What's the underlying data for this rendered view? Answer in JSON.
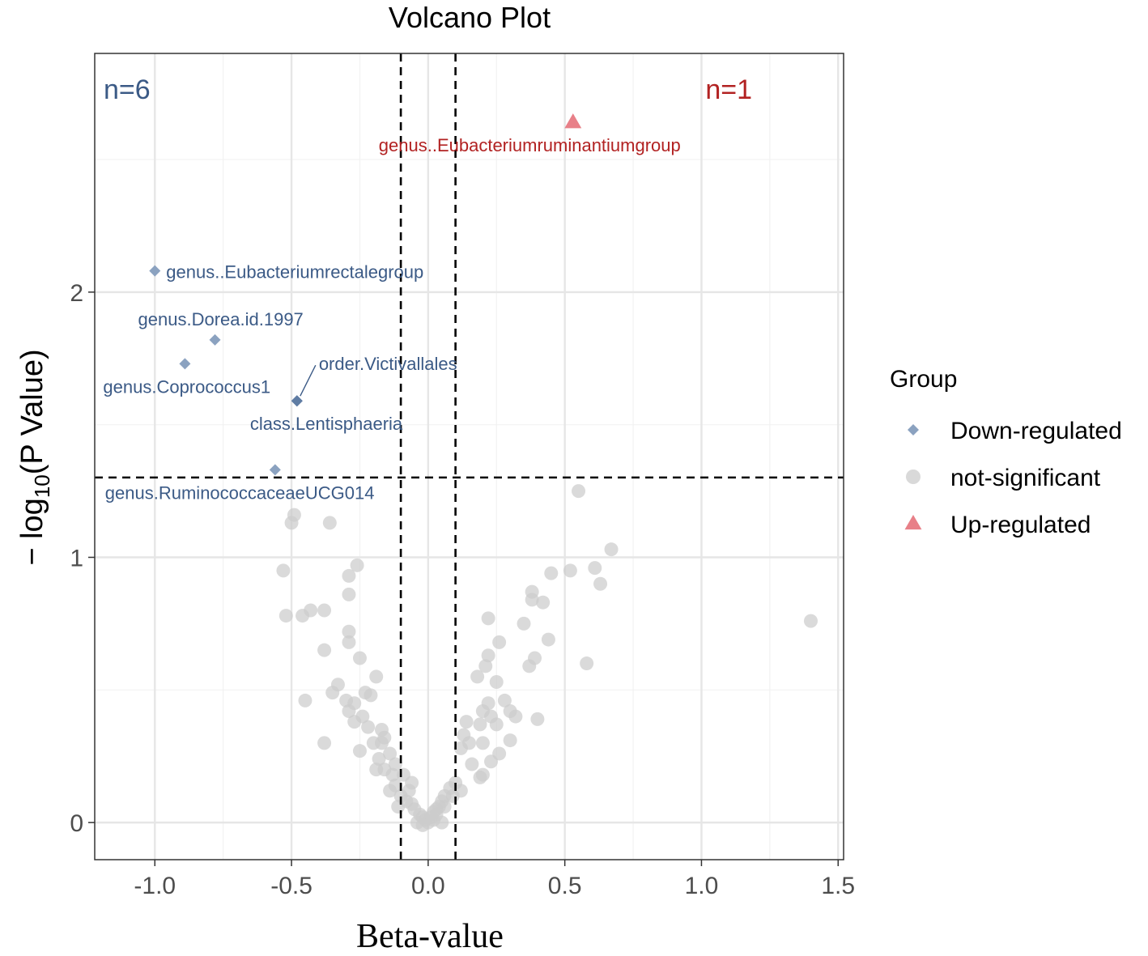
{
  "chart_data": {
    "type": "scatter",
    "title": "Volcano Plot",
    "xlabel": "Beta-value",
    "ylabel_prefix": "− log",
    "ylabel_sub": "10",
    "ylabel_suffix": "(P Value)",
    "xlim": [
      -1.22,
      1.52
    ],
    "ylim": [
      -0.14,
      2.9
    ],
    "x_ticks": [
      -1.0,
      -0.5,
      0.0,
      0.5,
      1.0,
      1.5
    ],
    "x_tick_labels": [
      "-1.0",
      "-0.5",
      "0.0",
      "0.5",
      "1.0",
      "1.5"
    ],
    "y_ticks": [
      0,
      1,
      2
    ],
    "y_tick_labels": [
      "0",
      "1",
      "2"
    ],
    "minor_x": [
      -0.75,
      -0.25,
      0.25,
      0.75,
      1.25
    ],
    "minor_y": [
      0.5,
      1.5,
      2.5
    ],
    "thresholds": {
      "x": [
        -0.1,
        0.1
      ],
      "y": 1.301
    },
    "counts": [
      {
        "text": "n=6",
        "color": "#3b5a86"
      },
      {
        "text": "n=1",
        "color": "#b22222"
      }
    ],
    "legend": {
      "title": "Group",
      "items": [
        {
          "label": "Down-regulated",
          "color": "#8ba2c0",
          "shape": "diamond"
        },
        {
          "label": "not-significant",
          "color": "#cccccc",
          "shape": "circle"
        },
        {
          "label": "Up-regulated",
          "color": "#e88088",
          "shape": "triangle"
        }
      ]
    },
    "significant": [
      {
        "label": "genus..Eubacteriumruminantiumgroup",
        "group": "Up-regulated",
        "x": 0.53,
        "y": 2.64
      },
      {
        "label": "genus..Eubacteriumrectalegroup",
        "group": "Down-regulated",
        "x": -1.0,
        "y": 2.08
      },
      {
        "label": "genus.Dorea.id.1997",
        "group": "Down-regulated",
        "x": -0.78,
        "y": 1.82
      },
      {
        "label": "genus.Coprococcus1",
        "group": "Down-regulated",
        "x": -0.89,
        "y": 1.73
      },
      {
        "label": "order.Victivallales",
        "group": "Down-regulated",
        "x": -0.48,
        "y": 1.59
      },
      {
        "label": "class.Lentisphaeria",
        "group": "Down-regulated",
        "x": -0.48,
        "y": 1.59
      },
      {
        "label": "genus.RuminococcaceaeUCG014",
        "group": "Down-regulated",
        "x": -0.56,
        "y": 1.33
      }
    ],
    "not_significant": [
      [
        0.55,
        1.25
      ],
      [
        0.67,
        1.03
      ],
      [
        0.52,
        0.95
      ],
      [
        0.61,
        0.96
      ],
      [
        0.63,
        0.9
      ],
      [
        1.4,
        0.76
      ],
      [
        0.45,
        0.94
      ],
      [
        0.38,
        0.87
      ],
      [
        0.38,
        0.84
      ],
      [
        0.42,
        0.83
      ],
      [
        0.35,
        0.75
      ],
      [
        0.44,
        0.69
      ],
      [
        0.39,
        0.62
      ],
      [
        0.37,
        0.59
      ],
      [
        0.58,
        0.6
      ],
      [
        0.22,
        0.77
      ],
      [
        0.26,
        0.68
      ],
      [
        0.22,
        0.63
      ],
      [
        0.21,
        0.59
      ],
      [
        0.25,
        0.53
      ],
      [
        0.18,
        0.55
      ],
      [
        0.22,
        0.45
      ],
      [
        0.28,
        0.46
      ],
      [
        0.3,
        0.42
      ],
      [
        0.32,
        0.4
      ],
      [
        0.4,
        0.39
      ],
      [
        0.2,
        0.42
      ],
      [
        0.23,
        0.4
      ],
      [
        0.25,
        0.37
      ],
      [
        0.19,
        0.37
      ],
      [
        0.14,
        0.38
      ],
      [
        0.13,
        0.33
      ],
      [
        0.2,
        0.3
      ],
      [
        0.3,
        0.31
      ],
      [
        0.26,
        0.26
      ],
      [
        0.23,
        0.23
      ],
      [
        0.15,
        0.3
      ],
      [
        0.12,
        0.28
      ],
      [
        0.16,
        0.22
      ],
      [
        0.2,
        0.18
      ],
      [
        0.19,
        0.17
      ],
      [
        0.1,
        0.15
      ],
      [
        0.08,
        0.13
      ],
      [
        0.12,
        0.12
      ],
      [
        0.06,
        0.1
      ],
      [
        0.05,
        0.08
      ],
      [
        0.04,
        0.06
      ],
      [
        0.03,
        0.05
      ],
      [
        0.02,
        0.04
      ],
      [
        0.01,
        0.02
      ],
      [
        0.0,
        0.0
      ],
      [
        0.02,
        0.01
      ],
      [
        -0.01,
        0.01
      ],
      [
        0.03,
        0.03
      ],
      [
        0.06,
        0.06
      ],
      [
        0.09,
        0.1
      ],
      [
        -0.02,
        0.02
      ],
      [
        -0.03,
        0.03
      ],
      [
        -0.05,
        0.05
      ],
      [
        -0.06,
        0.07
      ],
      [
        -0.08,
        0.08
      ],
      [
        -0.1,
        0.1
      ],
      [
        -0.12,
        0.14
      ],
      [
        -0.14,
        0.12
      ],
      [
        -0.06,
        0.15
      ],
      [
        -0.09,
        0.18
      ],
      [
        -0.13,
        0.18
      ],
      [
        -0.16,
        0.2
      ],
      [
        -0.12,
        0.22
      ],
      [
        -0.18,
        0.24
      ],
      [
        -0.14,
        0.26
      ],
      [
        -0.2,
        0.3
      ],
      [
        -0.16,
        0.32
      ],
      [
        -0.22,
        0.36
      ],
      [
        -0.17,
        0.35
      ],
      [
        -0.24,
        0.4
      ],
      [
        -0.27,
        0.38
      ],
      [
        -0.29,
        0.42
      ],
      [
        -0.3,
        0.46
      ],
      [
        -0.27,
        0.45
      ],
      [
        -0.23,
        0.49
      ],
      [
        -0.21,
        0.48
      ],
      [
        -0.33,
        0.52
      ],
      [
        -0.35,
        0.49
      ],
      [
        -0.45,
        0.46
      ],
      [
        -0.38,
        0.3
      ],
      [
        -0.25,
        0.27
      ],
      [
        -0.19,
        0.55
      ],
      [
        -0.25,
        0.62
      ],
      [
        -0.29,
        0.68
      ],
      [
        -0.29,
        0.72
      ],
      [
        -0.38,
        0.65
      ],
      [
        -0.38,
        0.8
      ],
      [
        -0.43,
        0.8
      ],
      [
        -0.46,
        0.78
      ],
      [
        -0.52,
        0.78
      ],
      [
        -0.53,
        0.95
      ],
      [
        -0.29,
        0.86
      ],
      [
        -0.29,
        0.93
      ],
      [
        -0.26,
        0.97
      ],
      [
        -0.36,
        1.13
      ],
      [
        -0.49,
        1.16
      ],
      [
        -0.5,
        1.13
      ],
      [
        -0.19,
        0.2
      ],
      [
        -0.17,
        0.3
      ],
      [
        -0.07,
        0.12
      ],
      [
        -0.11,
        0.06
      ],
      [
        -0.04,
        0.0
      ],
      [
        0.05,
        0.0
      ],
      [
        -0.02,
        -0.01
      ]
    ]
  }
}
